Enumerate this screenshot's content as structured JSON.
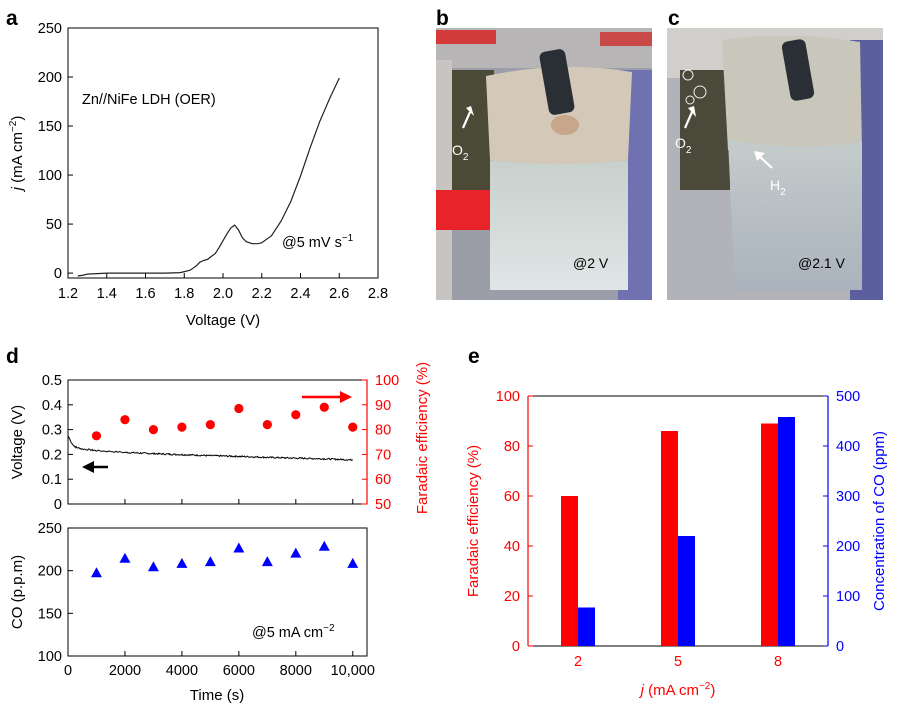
{
  "panel_labels": {
    "a": "a",
    "b": "b",
    "c": "c",
    "d": "d",
    "e": "e"
  },
  "colors": {
    "black": "#000000",
    "red": "#ff0000",
    "blue": "#0000ff",
    "line": "#222222"
  },
  "photos": {
    "b": {
      "o2": "O",
      "o2_sub": "2",
      "voltage": "@2 V"
    },
    "c": {
      "o2": "O",
      "o2_sub": "2",
      "h2": "H",
      "h2_sub": "2",
      "voltage": "@2.1 V"
    }
  },
  "chart_data": [
    {
      "id": "a",
      "type": "line",
      "xlabel": "Voltage (V)",
      "ylabel": "j (mA cm−2)",
      "xlim": [
        1.2,
        2.8
      ],
      "ylim": [
        -5,
        250
      ],
      "xticks": [
        "1.2",
        "1.4",
        "1.6",
        "1.8",
        "2.0",
        "2.2",
        "2.4",
        "2.6",
        "2.8"
      ],
      "yticks": [
        "0",
        "50",
        "100",
        "150",
        "200",
        "250"
      ],
      "annotations": [
        "Zn//NiFe LDH (OER)",
        "@5 mV s−1"
      ],
      "series": [
        {
          "name": "",
          "x": [
            1.25,
            1.28,
            1.3,
            1.35,
            1.4,
            1.5,
            1.6,
            1.7,
            1.78,
            1.83,
            1.86,
            1.88,
            1.9,
            1.92,
            1.94,
            1.96,
            1.98,
            2.0,
            2.02,
            2.04,
            2.06,
            2.08,
            2.1,
            2.12,
            2.15,
            2.18,
            2.2,
            2.25,
            2.3,
            2.35,
            2.4,
            2.45,
            2.5,
            2.55,
            2.6
          ],
          "y": [
            -3,
            -2,
            -1,
            -0.5,
            0,
            0,
            0,
            0,
            0.5,
            3,
            7,
            11,
            13,
            14,
            17,
            20,
            26,
            33,
            40,
            46,
            49,
            44,
            36,
            32,
            30,
            30,
            31,
            38,
            53,
            73,
            99,
            128,
            155,
            178,
            199
          ]
        }
      ]
    },
    {
      "id": "d-top",
      "type": "line",
      "xlim": [
        0,
        10500
      ],
      "ylim": [
        0,
        0.5
      ],
      "ylabel": "Voltage (V)",
      "y2label": "Faradaic efficiency (%)",
      "y2lim": [
        50,
        100
      ],
      "yticks": [
        "0",
        "0.1",
        "0.2",
        "0.3",
        "0.4",
        "0.5"
      ],
      "y2ticks": [
        "50",
        "60",
        "70",
        "80",
        "90",
        "100"
      ],
      "series": [
        {
          "name": "",
          "axis": "left",
          "x": [
            0,
            50,
            100,
            200,
            300,
            500,
            800,
            1000,
            1500,
            2000,
            3000,
            4000,
            5000,
            6000,
            7000,
            8000,
            9000,
            10000
          ],
          "y": [
            0.275,
            0.265,
            0.25,
            0.235,
            0.228,
            0.222,
            0.218,
            0.215,
            0.212,
            0.208,
            0.203,
            0.199,
            0.195,
            0.192,
            0.188,
            0.185,
            0.182,
            0.178
          ]
        },
        {
          "name": "",
          "axis": "right",
          "x": [
            1000,
            2000,
            3000,
            4000,
            5000,
            6000,
            7000,
            8000,
            9000,
            10000
          ],
          "y": [
            77.5,
            84,
            80,
            81,
            82,
            88.5,
            82,
            86,
            89,
            81
          ]
        }
      ]
    },
    {
      "id": "d-bottom",
      "type": "scatter",
      "xlabel": "Time (s)",
      "ylabel": "CO (p.p.m)",
      "xlim": [
        0,
        10500
      ],
      "ylim": [
        100,
        250
      ],
      "xticks": [
        "0",
        "2000",
        "4000",
        "6000",
        "8000",
        "10,000"
      ],
      "yticks": [
        "100",
        "150",
        "200",
        "250"
      ],
      "annotations": [
        "@5 mA cm−2"
      ],
      "series": [
        {
          "name": "",
          "x": [
            1000,
            2000,
            3000,
            4000,
            5000,
            6000,
            7000,
            8000,
            9000,
            10000
          ],
          "y": [
            197,
            214,
            204,
            208,
            210,
            226,
            210,
            220,
            228,
            208
          ]
        }
      ]
    },
    {
      "id": "e",
      "type": "bar",
      "xlabel": "j (mA cm−2)",
      "ylabel": "Faradaic efficiency (%)",
      "y2label": "Concentration of CO (ppm)",
      "categories": [
        "2",
        "5",
        "8"
      ],
      "ylim": [
        0,
        100
      ],
      "y2lim": [
        0,
        500
      ],
      "yticks": [
        "0",
        "20",
        "40",
        "60",
        "80",
        "100"
      ],
      "y2ticks": [
        "0",
        "100",
        "200",
        "300",
        "400",
        "500"
      ],
      "series": [
        {
          "name": "",
          "axis": "left",
          "values": [
            60,
            86,
            89
          ]
        },
        {
          "name": "",
          "axis": "right",
          "values": [
            77,
            220,
            458
          ]
        }
      ]
    }
  ]
}
